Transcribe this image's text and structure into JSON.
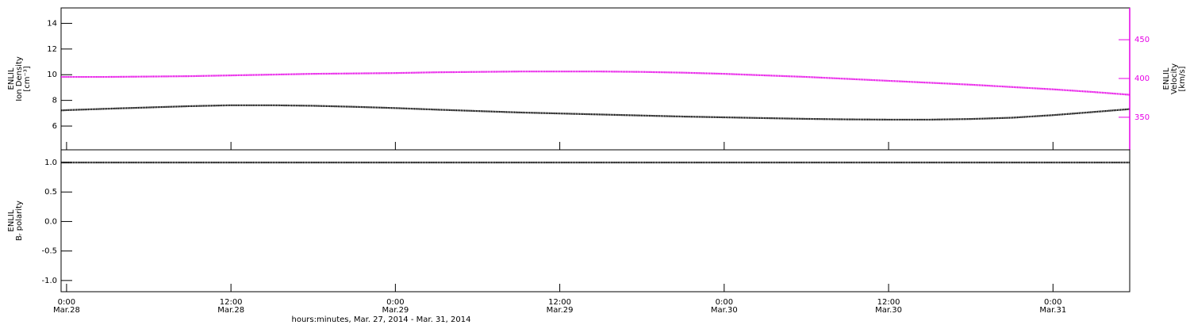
{
  "chart_data": [
    {
      "type": "line",
      "ylabel": [
        "ENLIL",
        "Ion Density",
        "[cm⁻³]"
      ],
      "y2label": [
        "ENLIL",
        "Velocity",
        "[km/s]"
      ],
      "x": [
        23.6,
        24,
        27,
        30,
        33,
        36,
        39,
        42,
        45,
        48,
        51,
        54,
        57,
        60,
        63,
        66,
        69,
        72,
        75,
        78,
        81,
        84,
        87,
        90,
        93,
        96,
        99,
        101.6
      ],
      "xlim": [
        23.6,
        101.6
      ],
      "xticks": [
        24,
        36,
        48,
        60,
        72,
        84,
        96
      ],
      "ylim": [
        4.15,
        15.2
      ],
      "yticks": [
        6,
        8,
        10,
        12,
        14
      ],
      "y2lim": [
        308,
        491
      ],
      "y2ticks": [
        350,
        400,
        450
      ],
      "y2color": "#e600e6",
      "series": [
        {
          "color": "#000000",
          "values": [
            7.22,
            7.24,
            7.35,
            7.45,
            7.55,
            7.62,
            7.62,
            7.58,
            7.5,
            7.4,
            7.28,
            7.17,
            7.06,
            6.98,
            6.9,
            6.82,
            6.74,
            6.68,
            6.62,
            6.56,
            6.52,
            6.5,
            6.5,
            6.55,
            6.65,
            6.85,
            7.1,
            7.32
          ]
        },
        {
          "color": "#e600e6",
          "axis": "y2",
          "values": [
            402,
            402,
            402,
            402.5,
            403,
            404,
            405,
            406,
            406.5,
            407,
            408,
            408.5,
            409,
            409,
            409,
            408.5,
            407.5,
            406,
            404,
            402,
            399.5,
            397,
            394.5,
            392,
            389,
            386,
            382.5,
            379
          ]
        }
      ]
    },
    {
      "type": "line",
      "ylabel": [
        "ENLIL",
        "Bᵣ polarity"
      ],
      "xlabel": "hours:minutes, Mar. 27, 2014 - Mar. 31, 2014",
      "x": [
        23.6,
        24,
        27,
        30,
        33,
        36,
        39,
        42,
        45,
        48,
        51,
        54,
        57,
        60,
        63,
        66,
        69,
        72,
        75,
        78,
        81,
        84,
        87,
        90,
        93,
        96,
        99,
        101.6
      ],
      "xlim": [
        23.6,
        101.6
      ],
      "xticks": [
        {
          "value": 24,
          "label": "0:00"
        },
        {
          "value": 36,
          "label": "12:00"
        },
        {
          "value": 48,
          "label": "0:00"
        },
        {
          "value": 60,
          "label": "12:00"
        },
        {
          "value": 72,
          "label": "0:00"
        },
        {
          "value": 84,
          "label": "12:00"
        },
        {
          "value": 96,
          "label": "0:00"
        }
      ],
      "xtick_dates": [
        "Mar.28",
        "Mar.28",
        "Mar.29",
        "Mar.29",
        "Mar.30",
        "Mar.30",
        "Mar.31"
      ],
      "ylim": [
        -1.19,
        1.215
      ],
      "yticks": [
        {
          "value": 1,
          "label": "1.0"
        },
        0.5,
        {
          "value": 0,
          "label": "0.0"
        },
        -0.5,
        {
          "value": -1,
          "label": "-1.0"
        }
      ],
      "series": [
        {
          "color": "#000000",
          "values": [
            1,
            1,
            1,
            1,
            1,
            1,
            1,
            1,
            1,
            1,
            1,
            1,
            1,
            1,
            1,
            1,
            1,
            1,
            1,
            1,
            1,
            1,
            1,
            1,
            1,
            1,
            1,
            1
          ]
        }
      ]
    }
  ]
}
